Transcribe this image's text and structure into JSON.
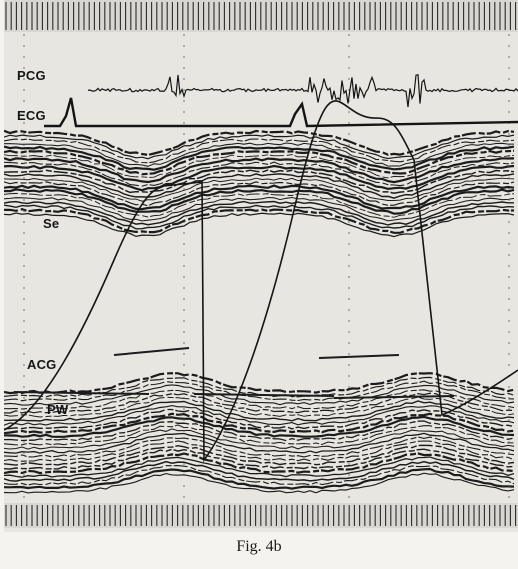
{
  "figure": {
    "caption": "Fig. 4b",
    "trace_labels": {
      "pcg": "PCG",
      "ecg": "ECG",
      "septum": "Se",
      "acg": "ACG",
      "posterior_wall": "PW"
    }
  },
  "colors": {
    "background": "#e7e6e1",
    "ink": "#151515"
  }
}
